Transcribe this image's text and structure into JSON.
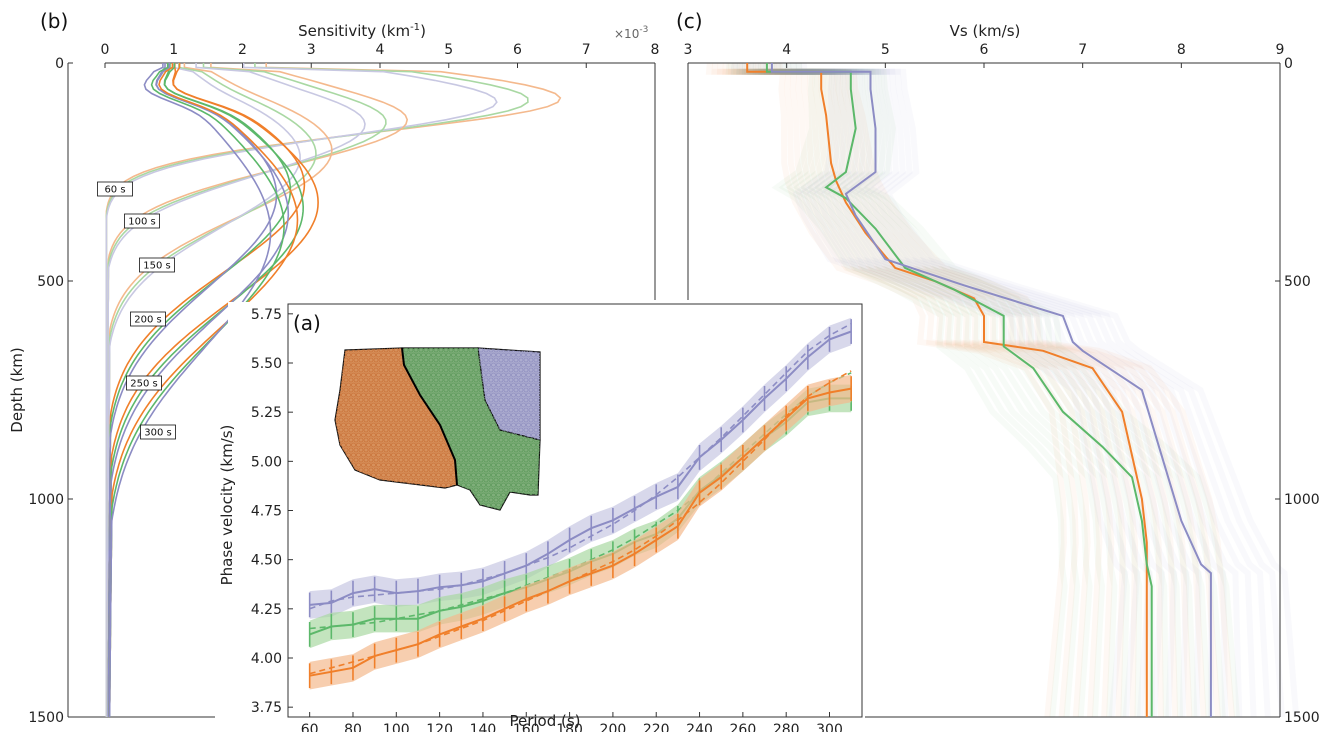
{
  "colors": {
    "orange": "#f07f2a",
    "green": "#5cb86a",
    "purple": "#8c8cc4",
    "orange_light": "#f4b98d",
    "green_light": "#a9d8a3",
    "purple_light": "#c8c8e2"
  },
  "panel_b": {
    "label": "(b)",
    "top_axis_label": "Sensitivity (km",
    "top_axis_sup": "-1",
    "top_axis_close": ")",
    "multiplier": "×10",
    "multiplier_exp": "-3",
    "y_axis_label": "Depth (km)",
    "period_labels": [
      "60 s",
      "100 s",
      "150 s",
      "200 s",
      "250 s",
      "300 s"
    ]
  },
  "panel_c": {
    "label": "(c)",
    "top_axis_label": "Vs (km/s)"
  },
  "panel_a": {
    "label": "(a)",
    "x_axis_label": "Period (s)",
    "y_axis_label": "Phase velocity (km/s)"
  },
  "chart_data": [
    {
      "type": "line",
      "panel": "b",
      "xlabel": "Sensitivity (km-1)",
      "ylabel": "Depth (km)",
      "x_multiplier": "1e-3",
      "xlim": [
        0,
        8
      ],
      "ylim": [
        1500,
        0
      ],
      "x_ticks": [
        0,
        1,
        2,
        3,
        4,
        5,
        6,
        7,
        8
      ],
      "y_ticks": [
        0,
        500,
        1000,
        1500
      ],
      "series_periods_s": [
        60,
        100,
        150,
        200,
        250,
        300
      ],
      "peak_sensitivity_approx": [
        {
          "period_s": 60,
          "depth_km": 80,
          "value": 6.7
        },
        {
          "period_s": 100,
          "depth_km": 130,
          "value": 4.4
        },
        {
          "period_s": 150,
          "depth_km": 200,
          "value": 3.3
        },
        {
          "period_s": 200,
          "depth_km": 280,
          "value": 2.9
        },
        {
          "period_s": 250,
          "depth_km": 320,
          "value": 3.1
        },
        {
          "period_s": 300,
          "depth_km": 360,
          "value": 2.8
        }
      ]
    },
    {
      "type": "line",
      "panel": "c",
      "xlabel": "Vs (km/s)",
      "ylabel": "",
      "xlim": [
        3,
        9
      ],
      "ylim": [
        1500,
        0
      ],
      "x_ticks": [
        3,
        4,
        5,
        6,
        7,
        8,
        9
      ],
      "y_ticks": [
        0,
        500,
        1000,
        1500
      ],
      "series": [
        {
          "color": "orange",
          "points": [
            [
              3.6,
              0
            ],
            [
              3.6,
              20
            ],
            [
              4.35,
              20
            ],
            [
              4.35,
              60
            ],
            [
              4.4,
              120
            ],
            [
              4.45,
              230
            ],
            [
              4.5,
              270
            ],
            [
              4.6,
              320
            ],
            [
              4.8,
              390
            ],
            [
              5.1,
              470
            ],
            [
              5.5,
              500
            ],
            [
              5.9,
              540
            ],
            [
              6.0,
              580
            ],
            [
              6.0,
              640
            ],
            [
              6.6,
              660
            ],
            [
              7.1,
              700
            ],
            [
              7.4,
              800
            ],
            [
              7.5,
              900
            ],
            [
              7.6,
              1000
            ],
            [
              7.65,
              1100
            ],
            [
              7.65,
              1500
            ]
          ]
        },
        {
          "color": "green",
          "points": [
            [
              3.8,
              0
            ],
            [
              3.8,
              20
            ],
            [
              4.65,
              20
            ],
            [
              4.65,
              60
            ],
            [
              4.7,
              150
            ],
            [
              4.6,
              250
            ],
            [
              4.4,
              285
            ],
            [
              4.6,
              310
            ],
            [
              4.9,
              380
            ],
            [
              5.2,
              470
            ],
            [
              5.7,
              520
            ],
            [
              6.2,
              580
            ],
            [
              6.2,
              650
            ],
            [
              6.5,
              700
            ],
            [
              6.8,
              800
            ],
            [
              7.2,
              880
            ],
            [
              7.5,
              950
            ],
            [
              7.6,
              1050
            ],
            [
              7.65,
              1150
            ],
            [
              7.7,
              1200
            ],
            [
              7.7,
              1500
            ]
          ]
        },
        {
          "color": "purple",
          "points": [
            [
              3.85,
              0
            ],
            [
              3.85,
              20
            ],
            [
              4.85,
              20
            ],
            [
              4.85,
              60
            ],
            [
              4.9,
              150
            ],
            [
              4.9,
              250
            ],
            [
              4.6,
              300
            ],
            [
              4.7,
              350
            ],
            [
              5.0,
              450
            ],
            [
              5.8,
              510
            ],
            [
              6.8,
              580
            ],
            [
              6.9,
              640
            ],
            [
              7.0,
              660
            ],
            [
              7.6,
              750
            ],
            [
              7.8,
              900
            ],
            [
              8.0,
              1050
            ],
            [
              8.2,
              1150
            ],
            [
              8.3,
              1170
            ],
            [
              8.3,
              1500
            ]
          ]
        }
      ]
    },
    {
      "type": "line",
      "panel": "a",
      "xlabel": "Period (s)",
      "ylabel": "Phase velocity (km/s)",
      "xlim": [
        50,
        315
      ],
      "ylim": [
        3.7,
        5.8
      ],
      "x_ticks": [
        60,
        80,
        100,
        120,
        140,
        160,
        180,
        200,
        220,
        240,
        260,
        280,
        300
      ],
      "y_ticks": [
        3.75,
        4.0,
        4.25,
        4.5,
        4.75,
        5.0,
        5.25,
        5.5,
        5.75
      ],
      "y_tick_labels": [
        "3.75",
        "4.00",
        "4.25",
        "4.50",
        "4.75",
        "5.00",
        "5.25",
        "5.50",
        "5.75"
      ],
      "x": [
        60,
        70,
        80,
        90,
        100,
        110,
        120,
        130,
        140,
        150,
        160,
        170,
        180,
        190,
        200,
        210,
        220,
        230,
        240,
        250,
        260,
        270,
        280,
        290,
        300,
        310
      ],
      "series": [
        {
          "color": "purple",
          "values": [
            4.27,
            4.28,
            4.33,
            4.35,
            4.33,
            4.34,
            4.36,
            4.37,
            4.39,
            4.43,
            4.47,
            4.53,
            4.6,
            4.66,
            4.7,
            4.76,
            4.82,
            4.87,
            5.02,
            5.11,
            5.21,
            5.32,
            5.42,
            5.53,
            5.62,
            5.66
          ],
          "band": 0.07,
          "model": [
            4.25,
            4.29,
            4.31,
            4.32,
            4.33,
            4.34,
            4.35,
            4.37,
            4.4,
            4.43,
            4.47,
            4.51,
            4.56,
            4.62,
            4.68,
            4.75,
            4.83,
            4.92,
            5.02,
            5.12,
            5.23,
            5.34,
            5.45,
            5.56,
            5.64,
            5.7
          ]
        },
        {
          "color": "green",
          "values": [
            4.12,
            4.16,
            4.17,
            4.2,
            4.2,
            4.2,
            4.24,
            4.26,
            4.29,
            4.33,
            4.36,
            4.4,
            4.44,
            4.49,
            4.53,
            4.59,
            4.63,
            4.71,
            4.85,
            4.93,
            5.02,
            5.12,
            5.2,
            5.3,
            5.32,
            5.32
          ],
          "band": 0.07,
          "model": [
            4.15,
            4.16,
            4.17,
            4.18,
            4.2,
            4.22,
            4.24,
            4.27,
            4.3,
            4.33,
            4.37,
            4.41,
            4.45,
            4.5,
            4.55,
            4.61,
            4.68,
            4.75,
            4.84,
            4.94,
            5.04,
            5.14,
            5.24,
            5.33,
            5.4,
            5.45
          ]
        },
        {
          "color": "orange",
          "values": [
            3.91,
            3.93,
            3.95,
            4.01,
            4.04,
            4.07,
            4.12,
            4.16,
            4.2,
            4.25,
            4.3,
            4.34,
            4.39,
            4.43,
            4.47,
            4.53,
            4.6,
            4.67,
            4.84,
            4.92,
            5.02,
            5.12,
            5.22,
            5.32,
            5.35,
            5.37
          ],
          "band": 0.07,
          "model": [
            3.92,
            3.95,
            3.98,
            4.01,
            4.04,
            4.07,
            4.11,
            4.15,
            4.19,
            4.24,
            4.29,
            4.34,
            4.39,
            4.44,
            4.49,
            4.55,
            4.62,
            4.7,
            4.79,
            4.89,
            5.0,
            5.11,
            5.23,
            5.33,
            5.4,
            5.46
          ]
        }
      ]
    }
  ]
}
